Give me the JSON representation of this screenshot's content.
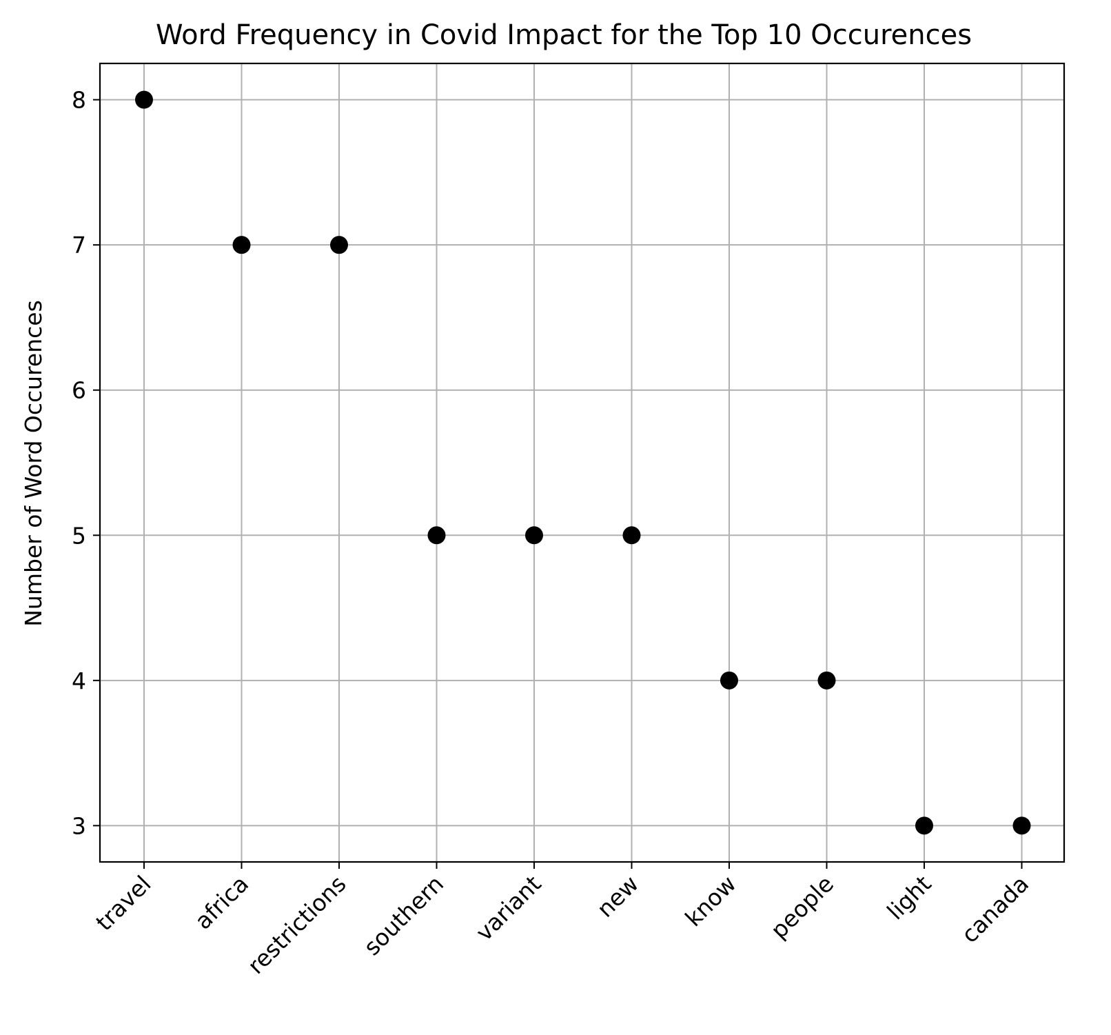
{
  "chart_data": {
    "type": "scatter",
    "title": "Word Frequency in Covid Impact for the Top 10 Occurences",
    "xlabel": "",
    "ylabel": "Number of Word Occurences",
    "categories": [
      "travel",
      "africa",
      "restrictions",
      "southern",
      "variant",
      "new",
      "know",
      "people",
      "light",
      "canada"
    ],
    "series": [
      {
        "values": [
          8,
          7,
          7,
          5,
          5,
          5,
          4,
          4,
          3,
          3
        ],
        "color": "#000000",
        "marker": "circle"
      }
    ],
    "yticks": [
      3,
      4,
      5,
      6,
      7,
      8
    ],
    "ylim": [
      2.75,
      8.25
    ],
    "grid": true,
    "xtick_rotation_deg": 45,
    "colors": {
      "grid": "#b0b0b0",
      "axes": "#000000",
      "background": "#ffffff"
    }
  }
}
